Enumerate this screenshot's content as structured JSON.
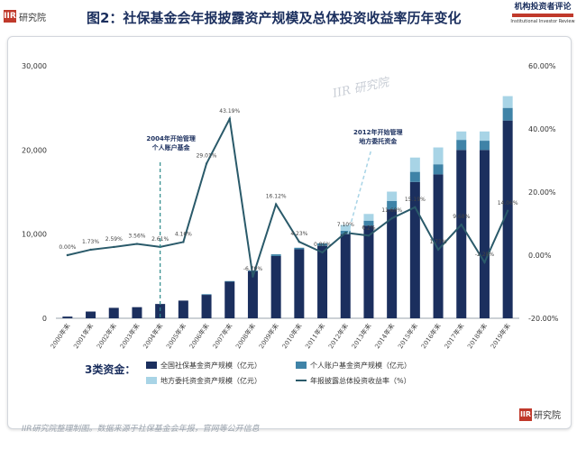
{
  "header": {
    "logo_left_mark": "IIR",
    "logo_left_text": "研究院",
    "title": "图2：社保基金会年报披露资产规模及总体投资收益率历年变化",
    "logo_right_line1": "机构投资者评论",
    "logo_right_line2": "Institutional Investor Review"
  },
  "footer": {
    "source": "IIR研究院整理制图。数据来源于社保基金会年报，官网等公开信息",
    "logo_mark": "IIR",
    "logo_text": "研究院"
  },
  "watermark": "IIR 研究院",
  "chart_data": {
    "type": "bar",
    "categories": [
      "2000年末",
      "2001年末",
      "2002年末",
      "2003年末",
      "2004年末",
      "2005年末",
      "2006年末",
      "2007年末",
      "2008年末",
      "2009年末",
      "2010年末",
      "2011年末",
      "2012年末",
      "2013年末",
      "2014年末",
      "2015年末",
      "2016年末",
      "2017年末",
      "2018年末",
      "2019年末"
    ],
    "series": [
      {
        "name": "全国社保基金资产规模（亿元）",
        "kind": "stacked-bar",
        "color": "#1b2f5e",
        "values": [
          200,
          800,
          1240,
          1320,
          1700,
          2100,
          2780,
          4340,
          5600,
          7400,
          8200,
          8600,
          10000,
          11000,
          12950,
          16200,
          17100,
          20000,
          20000,
          23500
        ]
      },
      {
        "name": "个人账户基金资产规模（亿元）",
        "kind": "stacked-bar",
        "color": "#3f83a7",
        "values": [
          0,
          0,
          0,
          0,
          0,
          0,
          80,
          80,
          80,
          200,
          180,
          300,
          400,
          600,
          1000,
          1200,
          1200,
          1200,
          1100,
          1500
        ]
      },
      {
        "name": "地方委托资金资产规模（亿元）",
        "kind": "stacked-bar",
        "color": "#a8d4e6",
        "values": [
          0,
          0,
          0,
          0,
          0,
          0,
          0,
          0,
          0,
          0,
          0,
          0,
          700,
          800,
          1100,
          1700,
          2000,
          1000,
          1100,
          1400
        ]
      },
      {
        "name": "年报披露总体投资收益率（%）",
        "kind": "line",
        "axis": "right",
        "color": "#2a5a6a",
        "values": [
          0.0,
          1.73,
          2.59,
          3.56,
          2.61,
          4.16,
          29.01,
          43.19,
          -6.79,
          16.12,
          4.23,
          0.86,
          7.1,
          6.2,
          11.69,
          15.19,
          1.73,
          9.68,
          -2.28,
          14.06
        ],
        "labels": [
          "0.00%",
          "1.73%",
          "2.59%",
          "3.56%",
          "2.61%",
          "4.16%",
          "29.01%",
          "43.19%",
          "-6.79%",
          "16.12%",
          "4.23%",
          "0.86%",
          "7.10%",
          "6.2%",
          "11.69%",
          "15.19%",
          "1.73%",
          "9.68%",
          "-2.28%",
          "14.06%"
        ]
      }
    ],
    "y_left": {
      "ylim": [
        0,
        30000
      ],
      "ticks": [
        "0",
        "10,000",
        "20,000",
        "30,000"
      ]
    },
    "y_right": {
      "ylim": [
        -20,
        60
      ],
      "ticks": [
        "-20.00%",
        "0.00%",
        "20.00%",
        "40.00%",
        "60.00%"
      ]
    },
    "annotations": [
      {
        "text": [
          "2004年开始管理",
          "个人账户基金"
        ],
        "x_category": "2004年末"
      },
      {
        "text": [
          "2012年开始管理",
          "地方委托资金"
        ],
        "x_category": "2012年末"
      }
    ],
    "legend": {
      "title": "3类资金：",
      "position": "bottom"
    },
    "grid": false
  }
}
